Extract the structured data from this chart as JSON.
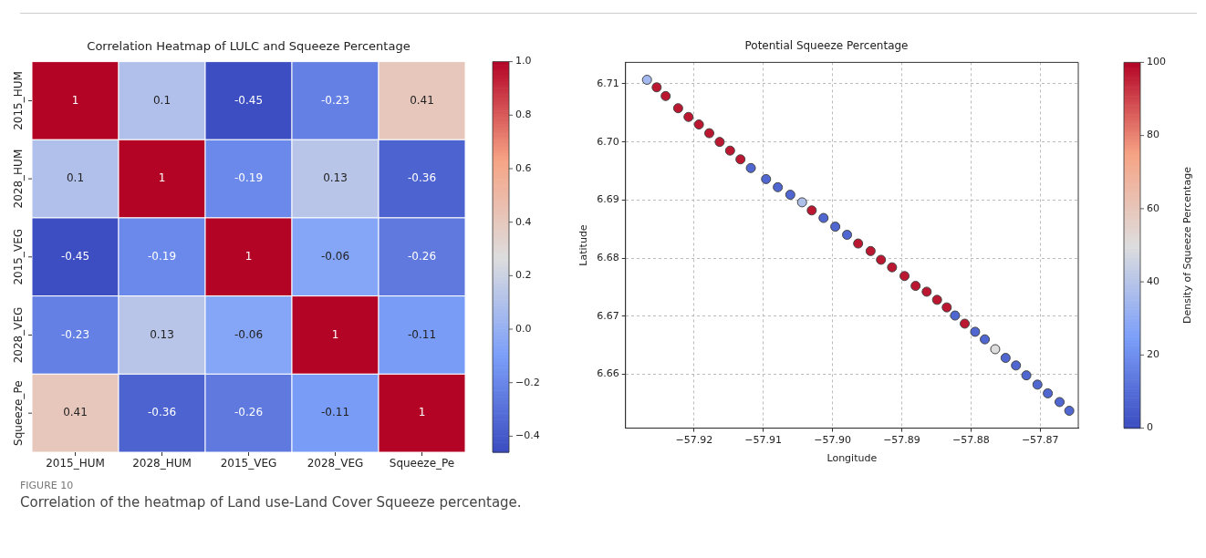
{
  "chart_data": [
    {
      "type": "heatmap",
      "title": "Correlation Heatmap of LULC and Squeeze Percentage",
      "categories": [
        "2015_HUM",
        "2028_HUM",
        "2015_VEG",
        "2028_VEG",
        "Squeeze_Pe"
      ],
      "y_categories": [
        "2015_HUM",
        "2028_HUM",
        "2015_VEG",
        "2028_VEG",
        "Squeeze_Pe"
      ],
      "cells": [
        [
          1,
          0.1,
          -0.45,
          -0.23,
          0.41
        ],
        [
          0.1,
          1,
          -0.19,
          0.13,
          -0.36
        ],
        [
          -0.45,
          -0.19,
          1,
          -0.06,
          -0.26
        ],
        [
          -0.23,
          0.13,
          -0.06,
          1,
          -0.11
        ],
        [
          0.41,
          -0.36,
          -0.26,
          -0.11,
          1
        ]
      ],
      "data_labels": true,
      "clim": [
        -0.46,
        1
      ],
      "cticks": [
        {
          "value": 1,
          "label": "1.0"
        },
        {
          "value": 0.8,
          "label": "0.8"
        },
        {
          "value": 0.6,
          "label": "0.6"
        },
        {
          "value": 0.4,
          "label": "0.4"
        },
        {
          "value": 0.2,
          "label": "0.2"
        },
        {
          "value": 0,
          "label": "0.0"
        },
        {
          "value": -0.2,
          "label": "−0.2"
        },
        {
          "value": -0.4,
          "label": "−0.4"
        }
      ],
      "annotations": [
        "FIGURE 10",
        "Correlation of the heatmap of Land use-Land Cover Squeeze percentage."
      ]
    },
    {
      "type": "scatter",
      "title": "Potential Squeeze Percentage",
      "xlabel": "Longitude",
      "ylabel": "Latitude",
      "clabel": "Density of Squeeze Percentage",
      "x": [
        -57.9268,
        -57.9254,
        -57.9241,
        -57.9223,
        -57.9208,
        -57.9193,
        -57.9178,
        -57.9163,
        -57.9148,
        -57.9133,
        -57.9118,
        -57.9096,
        -57.9079,
        -57.9061,
        -57.9044,
        -57.903,
        -57.9013,
        -57.8996,
        -57.8979,
        -57.8963,
        -57.8945,
        -57.893,
        -57.8914,
        -57.8896,
        -57.888,
        -57.8864,
        -57.8849,
        -57.8835,
        -57.8823,
        -57.8809,
        -57.8794,
        -57.878,
        -57.8765,
        -57.875,
        -57.8735,
        -57.872,
        -57.8704,
        -57.8689,
        -57.8672,
        -57.8658
      ],
      "values": [
        6.7107,
        6.7094,
        6.7079,
        6.7058,
        6.7043,
        6.703,
        6.7015,
        6.7,
        6.6985,
        6.697,
        6.6955,
        6.6936,
        6.6922,
        6.6909,
        6.6896,
        6.6882,
        6.6869,
        6.6854,
        6.684,
        6.6825,
        6.6812,
        6.6797,
        6.6784,
        6.6769,
        6.6752,
        6.6742,
        6.6728,
        6.6715,
        6.6701,
        6.6687,
        6.6673,
        6.666,
        6.6643,
        6.6628,
        6.6615,
        6.6598,
        6.6582,
        6.6567,
        6.6552,
        6.6537
      ],
      "cvalues": [
        35,
        97,
        97,
        97,
        97,
        97,
        97,
        97,
        97,
        97,
        8,
        8,
        8,
        8,
        38,
        97,
        8,
        8,
        8,
        97,
        97,
        97,
        97,
        97,
        97,
        97,
        97,
        97,
        8,
        97,
        8,
        8,
        50,
        8,
        8,
        8,
        8,
        8,
        8,
        8
      ],
      "clim": [
        0,
        100
      ],
      "cticks": [
        0,
        20,
        40,
        60,
        80,
        100
      ],
      "xlim": [
        -57.9299,
        -57.8645
      ],
      "ylim": [
        6.6507,
        6.7137
      ],
      "xticks": [
        {
          "value": -57.92,
          "label": "−57.92"
        },
        {
          "value": -57.91,
          "label": "−57.91"
        },
        {
          "value": -57.9,
          "label": "−57.90"
        },
        {
          "value": -57.89,
          "label": "−57.89"
        },
        {
          "value": -57.88,
          "label": "−57.88"
        },
        {
          "value": -57.87,
          "label": "−57.87"
        }
      ],
      "yticks": [
        {
          "value": 6.66,
          "label": "6.66"
        },
        {
          "value": 6.67,
          "label": "6.67"
        },
        {
          "value": 6.68,
          "label": "6.68"
        },
        {
          "value": 6.69,
          "label": "6.69"
        },
        {
          "value": 6.7,
          "label": "6.70"
        },
        {
          "value": 6.71,
          "label": "6.71"
        }
      ],
      "grid": true,
      "marker": "circle"
    }
  ]
}
